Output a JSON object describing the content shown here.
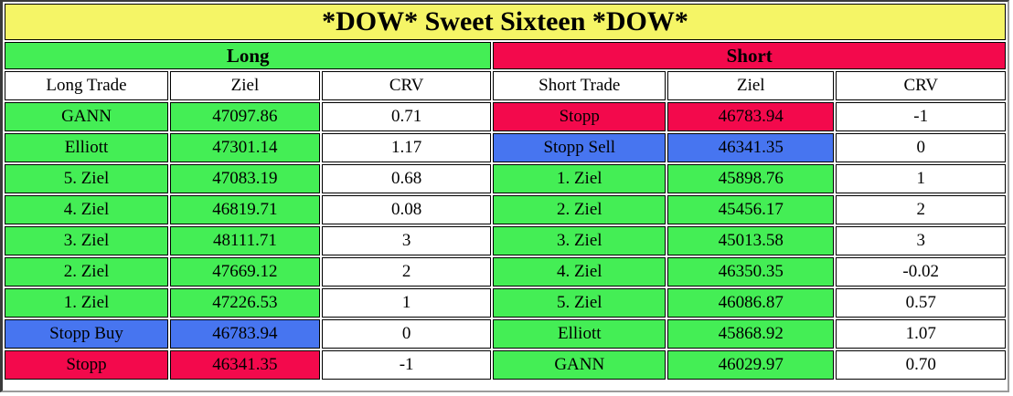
{
  "title": "*DOW* Sweet Sixteen *DOW*",
  "colors": {
    "title_bg": "#f5f566",
    "green": "#44ee55",
    "red": "#f3094c",
    "blue": "#4775f0"
  },
  "long": {
    "label": "Long",
    "columns": [
      "Long Trade",
      "Ziel",
      "CRV"
    ],
    "rows": [
      {
        "trade": "GANN",
        "ziel": "47097.86",
        "crv": "0.71",
        "color": "green"
      },
      {
        "trade": "Elliott",
        "ziel": "47301.14",
        "crv": "1.17",
        "color": "green"
      },
      {
        "trade": "5. Ziel",
        "ziel": "47083.19",
        "crv": "0.68",
        "color": "green"
      },
      {
        "trade": "4. Ziel",
        "ziel": "46819.71",
        "crv": "0.08",
        "color": "green"
      },
      {
        "trade": "3. Ziel",
        "ziel": "48111.71",
        "crv": "3",
        "color": "green"
      },
      {
        "trade": "2. Ziel",
        "ziel": "47669.12",
        "crv": "2",
        "color": "green"
      },
      {
        "trade": "1. Ziel",
        "ziel": "47226.53",
        "crv": "1",
        "color": "green"
      },
      {
        "trade": "Stopp Buy",
        "ziel": "46783.94",
        "crv": "0",
        "color": "blue"
      },
      {
        "trade": "Stopp",
        "ziel": "46341.35",
        "crv": "-1",
        "color": "red"
      }
    ]
  },
  "short": {
    "label": "Short",
    "columns": [
      "Short Trade",
      "Ziel",
      "CRV"
    ],
    "rows": [
      {
        "trade": "Stopp",
        "ziel": "46783.94",
        "crv": "-1",
        "color": "red"
      },
      {
        "trade": "Stopp Sell",
        "ziel": "46341.35",
        "crv": "0",
        "color": "blue"
      },
      {
        "trade": "1. Ziel",
        "ziel": "45898.76",
        "crv": "1",
        "color": "green"
      },
      {
        "trade": "2. Ziel",
        "ziel": "45456.17",
        "crv": "2",
        "color": "green"
      },
      {
        "trade": "3. Ziel",
        "ziel": "45013.58",
        "crv": "3",
        "color": "green"
      },
      {
        "trade": "4. Ziel",
        "ziel": "46350.35",
        "crv": "-0.02",
        "color": "green"
      },
      {
        "trade": "5. Ziel",
        "ziel": "46086.87",
        "crv": "0.57",
        "color": "green"
      },
      {
        "trade": "Elliott",
        "ziel": "45868.92",
        "crv": "1.07",
        "color": "green"
      },
      {
        "trade": "GANN",
        "ziel": "46029.97",
        "crv": "0.70",
        "color": "green"
      }
    ]
  }
}
